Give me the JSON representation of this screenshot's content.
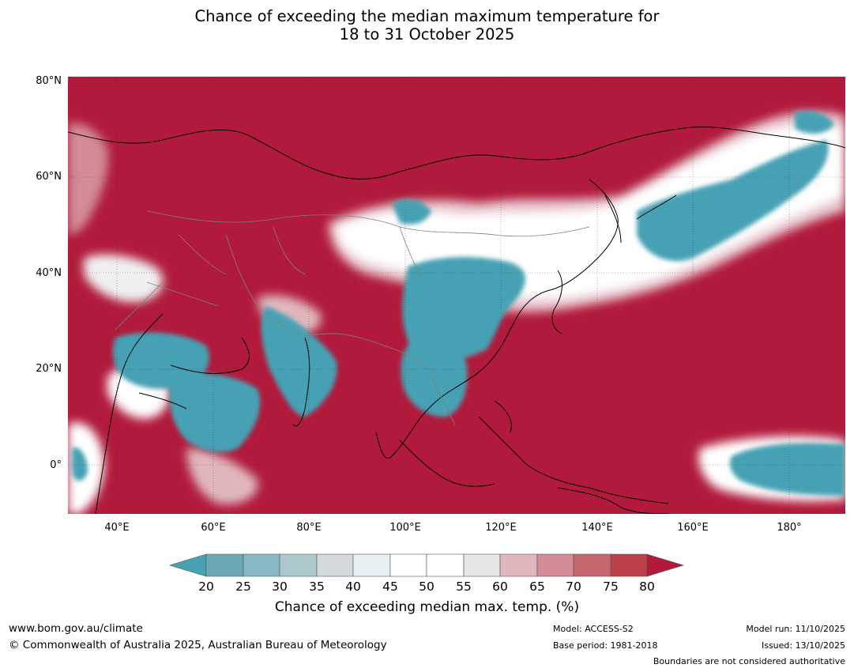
{
  "title": {
    "line1": "Chance of exceeding the median maximum temperature for",
    "line2": "18 to 31 October 2025"
  },
  "map": {
    "lat_labels": [
      "80°N",
      "60°N",
      "40°N",
      "20°N",
      "0°"
    ],
    "lon_labels": [
      "40°E",
      "60°E",
      "80°E",
      "100°E",
      "120°E",
      "140°E",
      "160°E",
      "180°"
    ],
    "colors": {
      "ocean_hot": "#b11a3b",
      "teal": "#47a1b4",
      "coastline": "#000000",
      "border": "#808080"
    }
  },
  "legend": {
    "ticks": [
      "20",
      "25",
      "30",
      "35",
      "40",
      "45",
      "50",
      "55",
      "60",
      "65",
      "70",
      "75",
      "80"
    ],
    "colors": [
      "#47a1b4",
      "#6aa9b5",
      "#88b8c5",
      "#adc8cd",
      "#d4d9db",
      "#e7eff2",
      "#ffffff",
      "#ffffff",
      "#e6e6e6",
      "#e0b7bd",
      "#d38b95",
      "#c6676f",
      "#bb4049",
      "#b11a3b"
    ],
    "title": "Chance of exceeding median max. temp. (%)"
  },
  "footer": {
    "url": "www.bom.gov.au/climate",
    "copyright": "© Commonwealth of Australia 2025, Australian Bureau of Meteorology",
    "model": "Model: ACCESS-S2",
    "base_period": "Base period: 1981-2018",
    "model_run": "Model run: 11/10/2025",
    "issued": "Issued: 13/10/2025",
    "disclaimer": "Boundaries are not considered authoritative"
  }
}
